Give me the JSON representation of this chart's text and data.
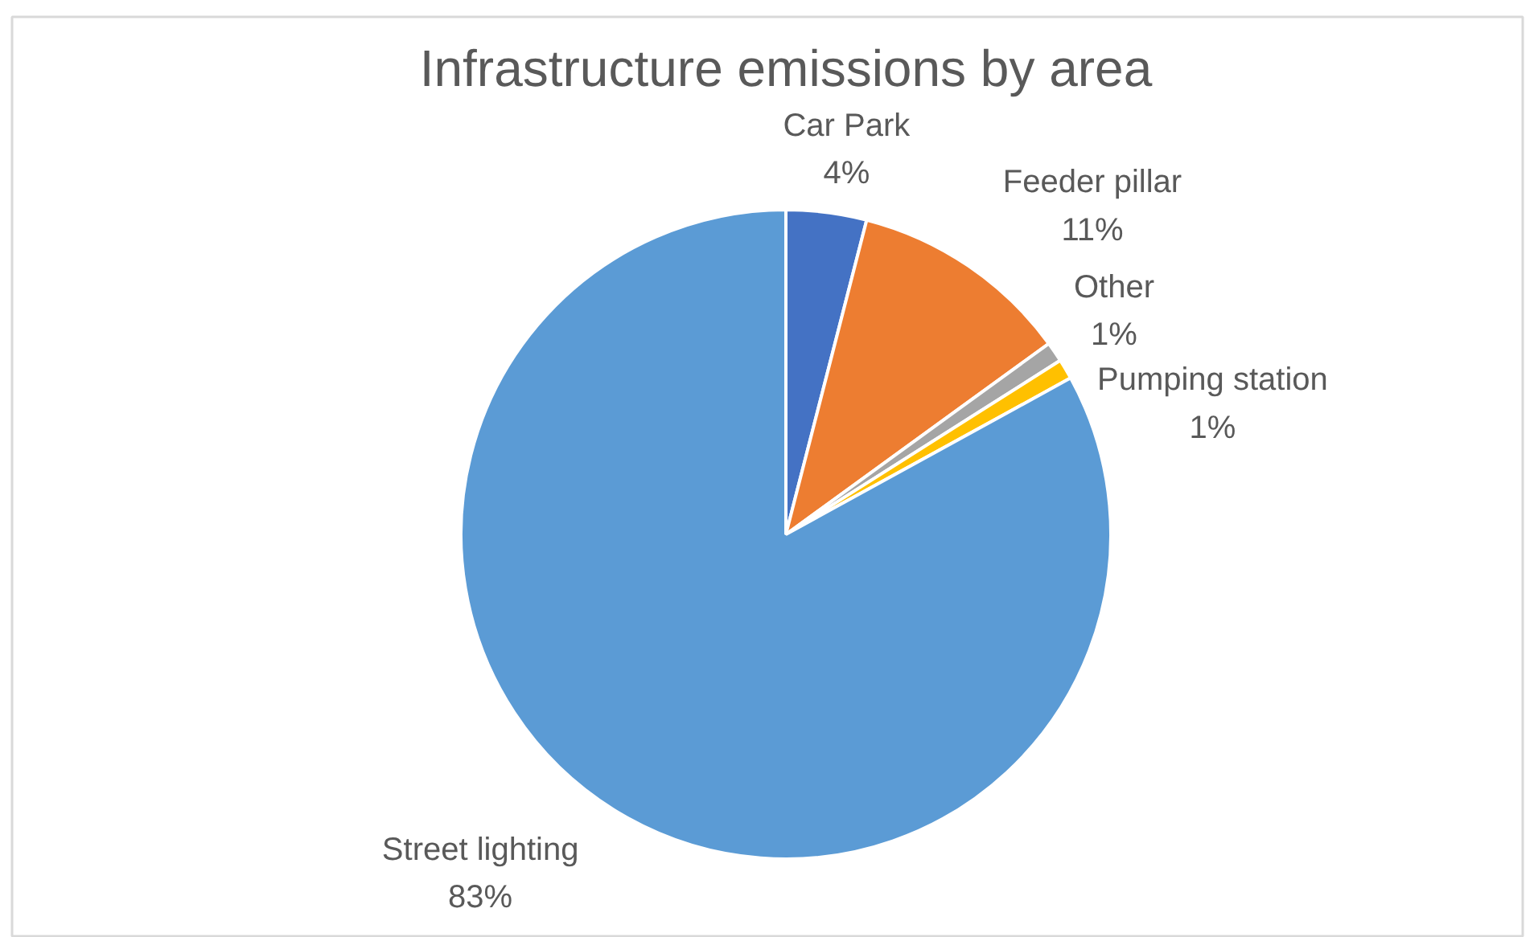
{
  "chart_data": {
    "type": "pie",
    "title": "Infrastructure emissions by area",
    "categories": [
      "Car Park",
      "Feeder pillar",
      "Other",
      "Pumping station",
      "Street lighting"
    ],
    "values": [
      4,
      11,
      1,
      1,
      83
    ],
    "colors": [
      "#4472c4",
      "#ed7d31",
      "#a5a5a5",
      "#ffc000",
      "#5b9bd5"
    ],
    "value_labels": [
      "4%",
      "11%",
      "1%",
      "1%",
      "83%"
    ]
  }
}
